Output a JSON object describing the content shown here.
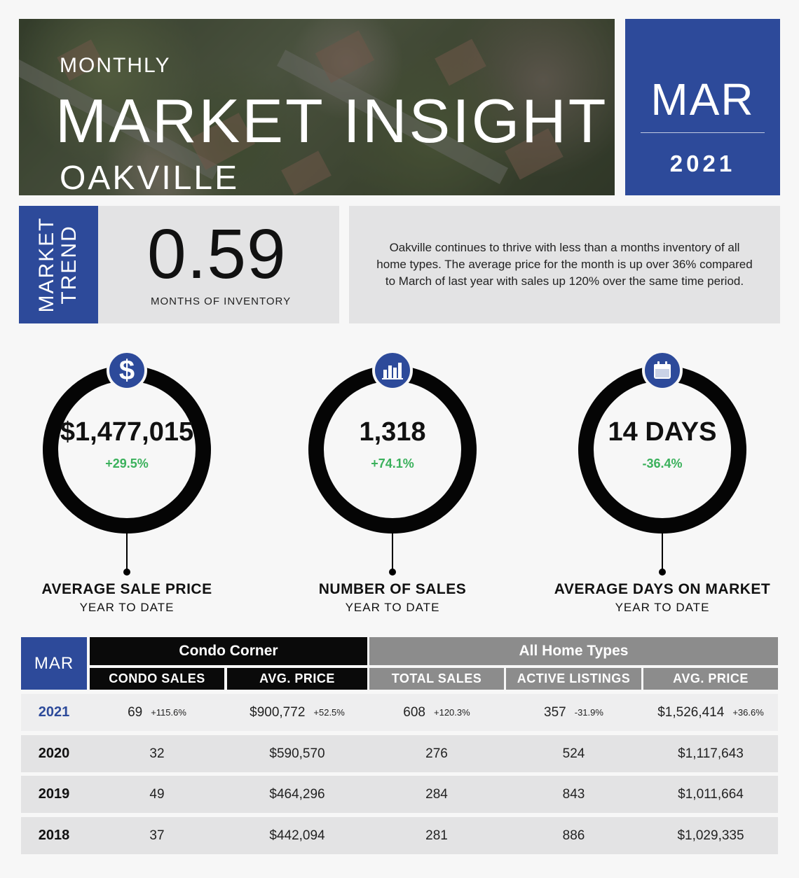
{
  "header": {
    "monthly": "MONTHLY",
    "title": "MARKET INSIGHT",
    "city": "OAKVILLE",
    "month": "MAR",
    "year": "2021"
  },
  "trend": {
    "side_label_line1": "MARKET",
    "side_label_line2": "TREND",
    "value": "0.59",
    "caption": "MONTHS OF INVENTORY",
    "description": "Oakville continues to thrive with less than a months inventory of all home types. The average price for the month is up over 36% compared to March of last year with sales up 120% over the same time period."
  },
  "kpis": [
    {
      "icon": "dollar-icon",
      "value": "$1,477,015",
      "change": "+29.5%",
      "label": "AVERAGE SALE PRICE",
      "sub": "YEAR TO DATE"
    },
    {
      "icon": "bar-chart-icon",
      "value": "1,318",
      "change": "+74.1%",
      "label": "NUMBER OF SALES",
      "sub": "YEAR TO DATE"
    },
    {
      "icon": "calendar-icon",
      "value": "14 DAYS",
      "change": "-36.4%",
      "label": "AVERAGE DAYS ON MARKET",
      "sub": "YEAR TO DATE"
    }
  ],
  "table": {
    "month": "MAR",
    "group_condo": "Condo Corner",
    "group_all": "All Home Types",
    "columns": [
      "CONDO SALES",
      "AVG. PRICE",
      "TOTAL SALES",
      "ACTIVE LISTINGS",
      "AVG. PRICE"
    ],
    "rows": [
      {
        "year": "2021",
        "cells": [
          {
            "v": "69",
            "p": "+115.6%"
          },
          {
            "v": "$900,772",
            "p": "+52.5%"
          },
          {
            "v": "608",
            "p": "+120.3%"
          },
          {
            "v": "357",
            "p": "-31.9%"
          },
          {
            "v": "$1,526,414",
            "p": "+36.6%"
          }
        ]
      },
      {
        "year": "2020",
        "cells": [
          {
            "v": "32"
          },
          {
            "v": "$590,570"
          },
          {
            "v": "276"
          },
          {
            "v": "524"
          },
          {
            "v": "$1,117,643"
          }
        ]
      },
      {
        "year": "2019",
        "cells": [
          {
            "v": "49"
          },
          {
            "v": "$464,296"
          },
          {
            "v": "284"
          },
          {
            "v": "843"
          },
          {
            "v": "$1,011,664"
          }
        ]
      },
      {
        "year": "2018",
        "cells": [
          {
            "v": "37"
          },
          {
            "v": "$442,094"
          },
          {
            "v": "281"
          },
          {
            "v": "886"
          },
          {
            "v": "$1,029,335"
          }
        ]
      }
    ]
  },
  "colors": {
    "brand_blue": "#2d4a9a",
    "positive_green": "#3bb15c",
    "header_grey": "#8c8c8c"
  }
}
